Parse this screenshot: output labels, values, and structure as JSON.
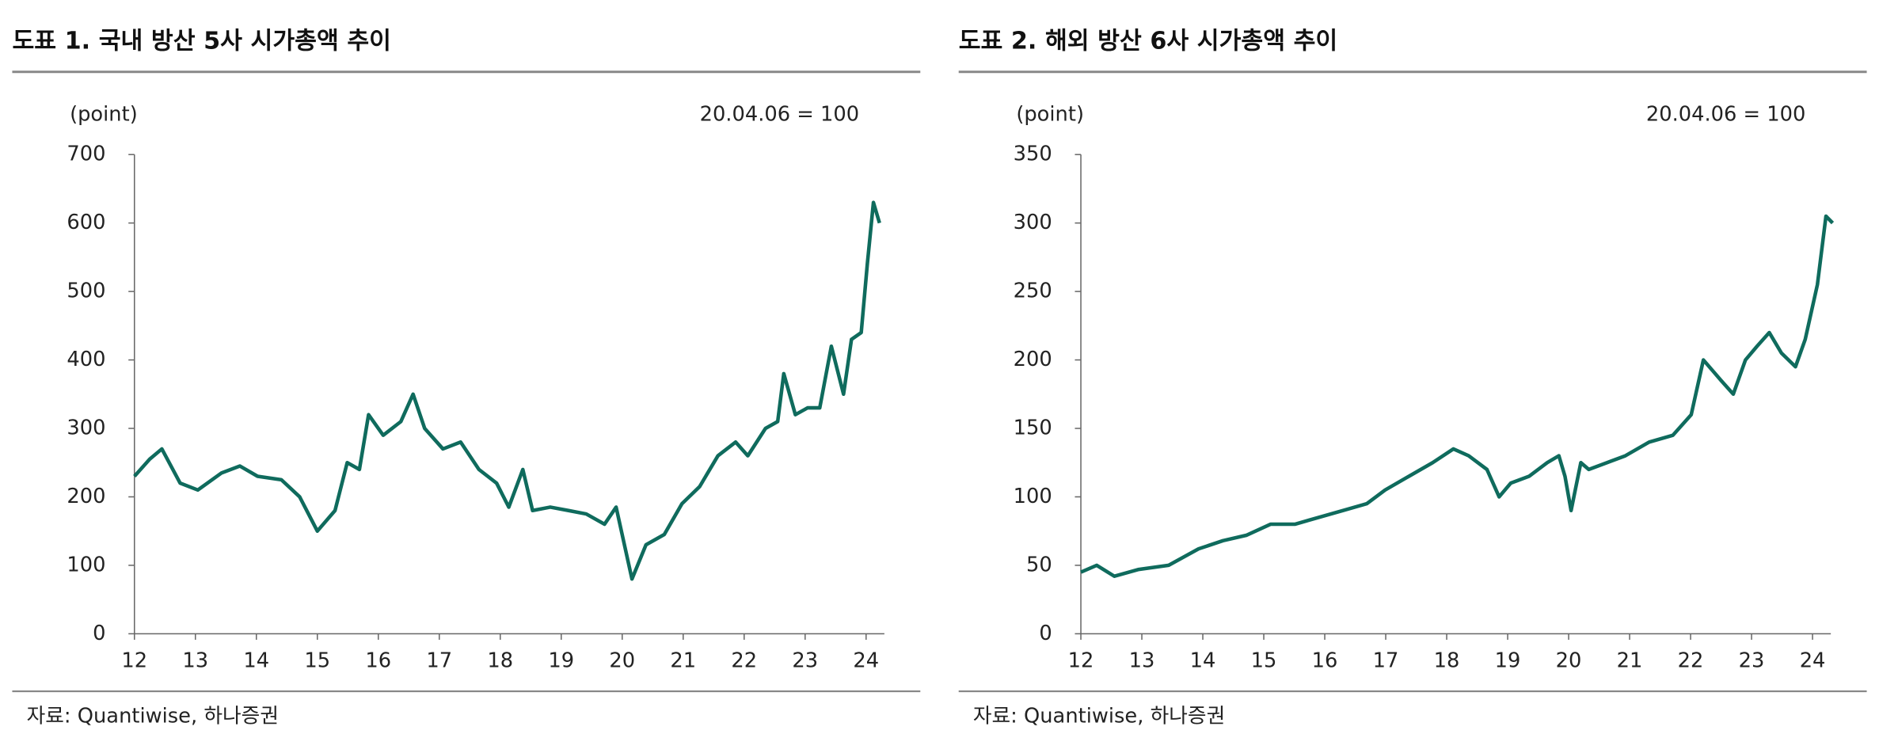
{
  "chart_data": [
    {
      "type": "line",
      "title": "도표 1. 국내 방산 5사 시가총액 추이",
      "y_label": "(point)",
      "annotation": "20.04.06 = 100",
      "source": "자료: Quantiwise, 하나증권",
      "x": [
        12.0,
        12.25,
        12.45,
        12.75,
        13.04,
        13.43,
        13.73,
        14.02,
        14.41,
        14.71,
        15.0,
        15.29,
        15.49,
        15.69,
        15.84,
        16.08,
        16.37,
        16.57,
        16.76,
        17.06,
        17.35,
        17.65,
        17.94,
        18.14,
        18.37,
        18.53,
        18.82,
        19.12,
        19.41,
        19.71,
        19.9,
        20.16,
        20.39,
        20.69,
        20.98,
        21.27,
        21.57,
        21.86,
        22.06,
        22.35,
        22.55,
        22.65,
        22.84,
        23.04,
        23.24,
        23.43,
        23.63,
        23.76,
        23.92,
        24.02,
        24.12,
        24.22
      ],
      "series": [
        {
          "name": null,
          "color": "#0f6b5d",
          "values": [
            230,
            255,
            270,
            220,
            210,
            235,
            245,
            230,
            225,
            200,
            150,
            180,
            250,
            240,
            320,
            290,
            310,
            350,
            300,
            270,
            280,
            240,
            220,
            185,
            240,
            180,
            185,
            180,
            175,
            160,
            185,
            80,
            130,
            145,
            190,
            215,
            260,
            280,
            260,
            300,
            310,
            380,
            320,
            330,
            330,
            420,
            350,
            430,
            440,
            540,
            630,
            600
          ]
        }
      ],
      "xlim": [
        12,
        24.3
      ],
      "xticks": [
        12,
        13,
        14,
        15,
        16,
        17,
        18,
        19,
        20,
        21,
        22,
        23,
        24
      ],
      "ylim": [
        0,
        700
      ],
      "yticks": [
        0,
        100,
        200,
        300,
        400,
        500,
        600,
        700
      ]
    },
    {
      "type": "line",
      "title": "도표 2. 해외 방산 6사 시가총액 추이",
      "y_label": "(point)",
      "annotation": "20.04.06 = 100",
      "source": "자료: Quantiwise, 하나증권",
      "x": [
        12.0,
        12.26,
        12.55,
        12.95,
        13.44,
        13.93,
        14.33,
        14.72,
        15.11,
        15.51,
        15.9,
        16.3,
        16.69,
        16.99,
        17.38,
        17.77,
        18.11,
        18.36,
        18.66,
        18.86,
        19.05,
        19.35,
        19.65,
        19.84,
        19.94,
        20.04,
        20.2,
        20.33,
        20.63,
        20.93,
        21.32,
        21.71,
        22.01,
        22.21,
        22.5,
        22.7,
        22.9,
        23.09,
        23.29,
        23.49,
        23.72,
        23.88,
        24.08,
        24.22,
        24.33
      ],
      "series": [
        {
          "name": null,
          "color": "#0f6b5d",
          "values": [
            45,
            50,
            42,
            47,
            50,
            62,
            68,
            72,
            80,
            80,
            85,
            90,
            95,
            105,
            115,
            125,
            135,
            130,
            120,
            100,
            110,
            115,
            125,
            130,
            115,
            90,
            125,
            120,
            125,
            130,
            140,
            145,
            160,
            200,
            185,
            175,
            200,
            210,
            220,
            205,
            195,
            215,
            255,
            305,
            300
          ]
        }
      ],
      "xlim": [
        12,
        24.3
      ],
      "xticks": [
        12,
        13,
        14,
        15,
        16,
        17,
        18,
        19,
        20,
        21,
        22,
        23,
        24
      ],
      "ylim": [
        0,
        350
      ],
      "yticks": [
        0,
        50,
        100,
        150,
        200,
        250,
        300,
        350
      ]
    }
  ]
}
